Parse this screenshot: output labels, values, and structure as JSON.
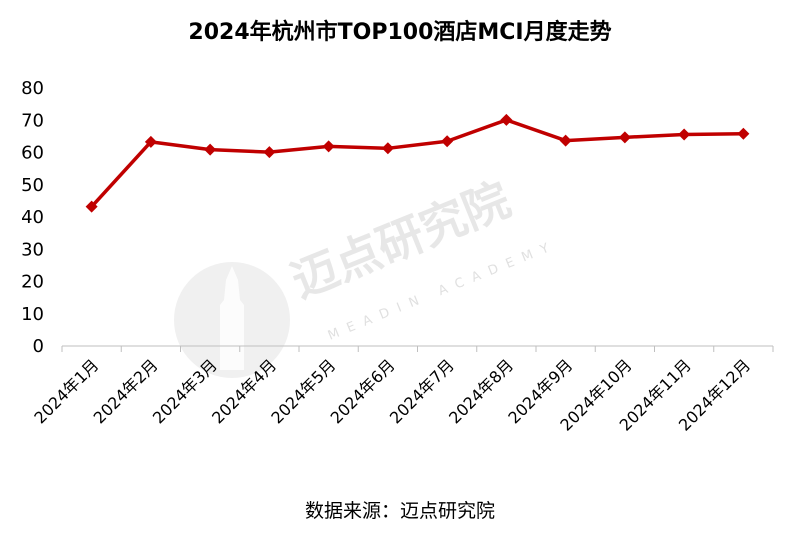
{
  "title": "2024年杭州市TOP100酒店MCI月度走势",
  "source": "数据来源：迈点研究院",
  "watermark": {
    "main": "迈点研究院",
    "sub": "MEADIN ACADEMY"
  },
  "chart_data": {
    "type": "line",
    "title": "2024年杭州市TOP100酒店MCI月度走势",
    "categories": [
      "2024年1月",
      "2024年2月",
      "2024年3月",
      "2024年4月",
      "2024年5月",
      "2024年6月",
      "2024年7月",
      "2024年8月",
      "2024年9月",
      "2024年10月",
      "2024年11月",
      "2024年12月"
    ],
    "series": [
      {
        "values": [
          43.2,
          63.3,
          60.9,
          60.1,
          61.9,
          61.3,
          63.5,
          70.1,
          63.7,
          64.7,
          65.6,
          65.8
        ]
      }
    ],
    "ylim": [
      0,
      80
    ],
    "yticks": [
      0,
      10,
      20,
      30,
      40,
      50,
      60,
      70,
      80
    ],
    "grid": false,
    "legend": "none",
    "colors": {
      "line": "#c00000",
      "axis": "#bfbfbf"
    }
  }
}
